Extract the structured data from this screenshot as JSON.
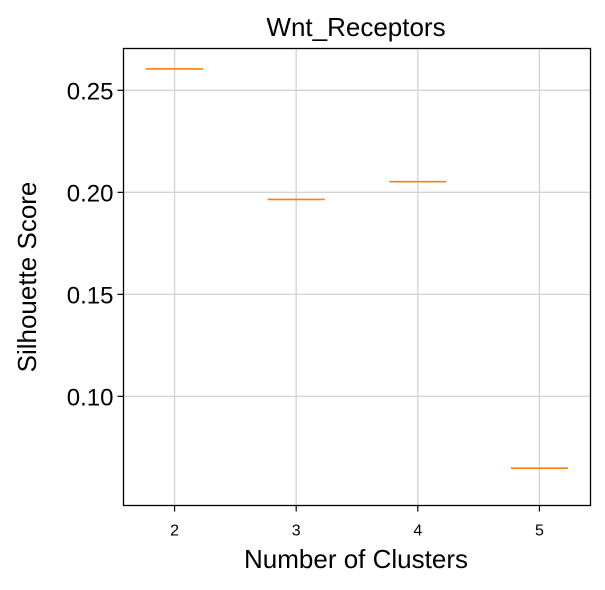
{
  "chart_data": {
    "type": "box",
    "title": "Wnt_Receptors",
    "xlabel": "Number of Clusters",
    "ylabel": "Silhouette Score",
    "categories": [
      "2",
      "3",
      "4",
      "5"
    ],
    "values": [
      0.2605,
      0.1965,
      0.2052,
      0.0648
    ],
    "ylim": [
      0.0465,
      0.2705
    ],
    "yticks": [
      0.1,
      0.15,
      0.2,
      0.25
    ],
    "ytick_labels": [
      "0.10",
      "0.15",
      "0.20",
      "0.25"
    ],
    "grid": true,
    "median_color": "#ff7f0e"
  }
}
